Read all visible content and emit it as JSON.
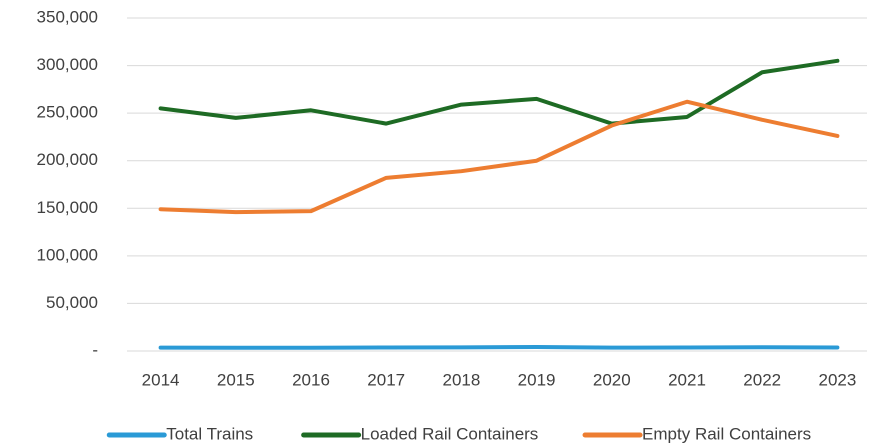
{
  "chart_data": {
    "type": "line",
    "categories": [
      "2014",
      "2015",
      "2016",
      "2017",
      "2018",
      "2019",
      "2020",
      "2021",
      "2022",
      "2023"
    ],
    "series": [
      {
        "name": "Total Trains",
        "color": "#2a9ad6",
        "values": [
          3500,
          3400,
          3400,
          3700,
          3800,
          4200,
          3500,
          3700,
          3900,
          3700
        ]
      },
      {
        "name": "Loaded Rail Containers",
        "color": "#1e6b24",
        "values": [
          255000,
          245000,
          253000,
          239000,
          259000,
          265000,
          239000,
          246000,
          293000,
          305000
        ]
      },
      {
        "name": "Empty Rail Containers",
        "color": "#ed7d31",
        "values": [
          149000,
          146000,
          147000,
          182000,
          189000,
          200000,
          237000,
          262000,
          243000,
          226000
        ]
      }
    ],
    "ylim": [
      0,
      350000
    ],
    "yticks": [
      {
        "value": 0,
        "label": "-"
      },
      {
        "value": 50000,
        "label": "50,000"
      },
      {
        "value": 100000,
        "label": "100,000"
      },
      {
        "value": 150000,
        "label": "150,000"
      },
      {
        "value": 200000,
        "label": "200,000"
      },
      {
        "value": 250000,
        "label": "250,000"
      },
      {
        "value": 300000,
        "label": "300,000"
      },
      {
        "value": 350000,
        "label": "350,000"
      }
    ],
    "grid": true,
    "legend": "bottom"
  }
}
